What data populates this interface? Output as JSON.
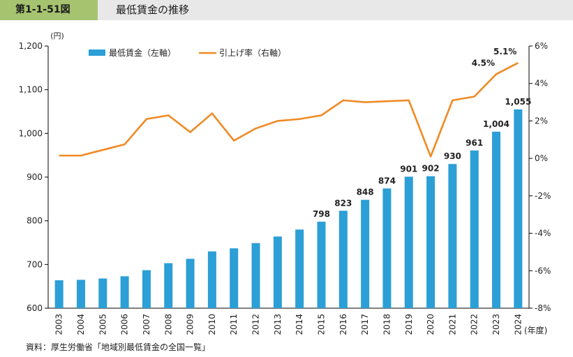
{
  "header": {
    "figure_number": "第1-1-51図",
    "title": "最低賃金の推移"
  },
  "source": "資料：厚生労働省「地域別最低賃金の全国一覧」",
  "chart_data": {
    "type": "bar+line",
    "categories": [
      "2003",
      "2004",
      "2005",
      "2006",
      "2007",
      "2008",
      "2009",
      "2010",
      "2011",
      "2012",
      "2013",
      "2014",
      "2015",
      "2016",
      "2017",
      "2018",
      "2019",
      "2020",
      "2021",
      "2022",
      "2023",
      "2024"
    ],
    "series": [
      {
        "name": "最低賃金（左軸）",
        "type": "bar",
        "axis": "left",
        "color": "#2b9fd6",
        "values": [
          664,
          665,
          668,
          673,
          687,
          703,
          713,
          730,
          737,
          749,
          764,
          780,
          798,
          823,
          848,
          874,
          901,
          902,
          930,
          961,
          1004,
          1055
        ],
        "data_labels": {
          "12": "798",
          "13": "823",
          "14": "848",
          "15": "874",
          "16": "901",
          "17": "902",
          "18": "930",
          "19": "961",
          "20": "1,004",
          "21": "1,055"
        }
      },
      {
        "name": "引上げ率（右軸）",
        "type": "line",
        "axis": "right",
        "color": "#f08a24",
        "values": [
          0.15,
          0.15,
          0.45,
          0.75,
          2.1,
          2.3,
          1.4,
          2.4,
          0.95,
          1.6,
          2.0,
          2.1,
          2.3,
          3.1,
          3.0,
          3.05,
          3.1,
          0.1,
          3.1,
          3.3,
          4.5,
          5.1
        ],
        "data_labels": {
          "20": "4.5%",
          "21": "5.1%"
        }
      }
    ],
    "left_axis": {
      "unit": "(円)",
      "ylim": [
        600,
        1200
      ],
      "tick_values": [
        600,
        700,
        800,
        900,
        1000,
        1100,
        1200
      ],
      "tick_labels": [
        "600",
        "700",
        "800",
        "900",
        "1,000",
        "1,100",
        "1,200"
      ]
    },
    "right_axis": {
      "ylim": [
        -8,
        6
      ],
      "tick_values": [
        -8,
        -6,
        -4,
        -2,
        0,
        2,
        4,
        6
      ],
      "tick_labels": [
        "-8%",
        "-6%",
        "-4%",
        "-2%",
        "0%",
        "2%",
        "4%",
        "6%"
      ]
    },
    "x_axis_unit": "(年度)",
    "legend_position": "top-left",
    "grid": false
  }
}
